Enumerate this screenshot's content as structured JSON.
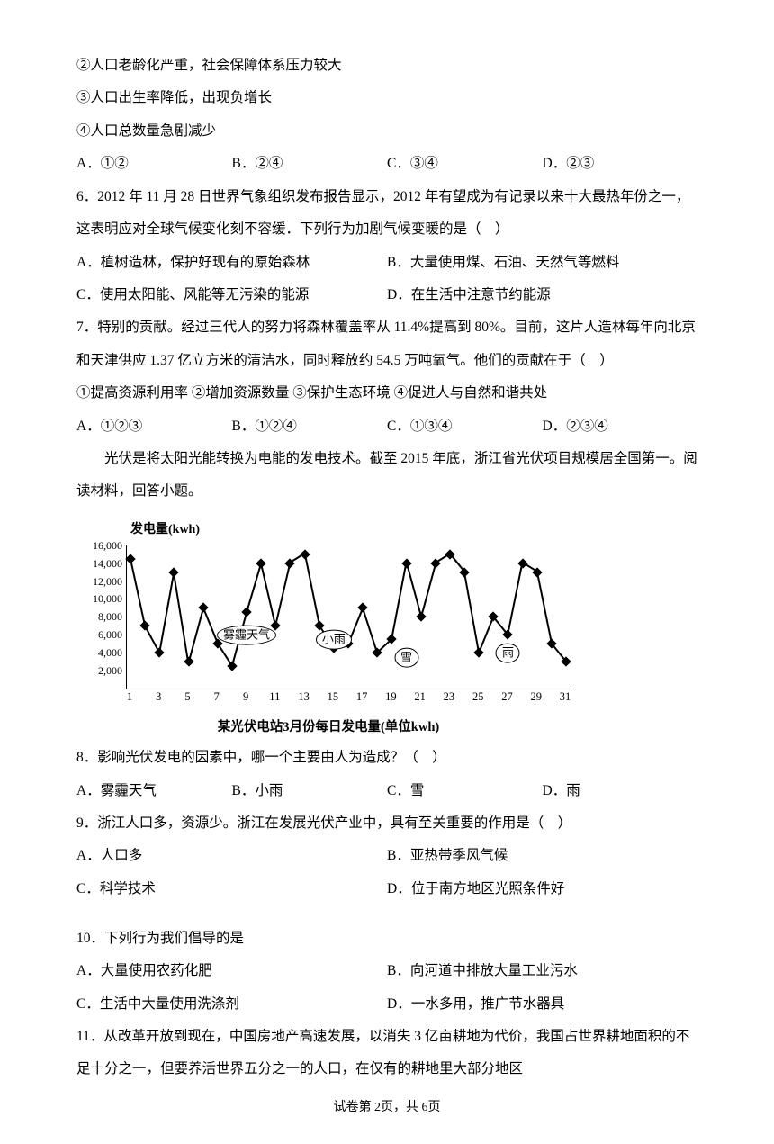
{
  "q_pre": {
    "s2": "②人口老龄化严重，社会保障体系压力较大",
    "s3": "③人口出生率降低，出现负增长",
    "s4": "④人口总数量急剧减少",
    "opts": {
      "a": "A．①②",
      "b": "B．②④",
      "c": "C．③④",
      "d": "D．②③"
    }
  },
  "q6": {
    "stem1": "6．2012 年 11 月 28 日世界气象组织发布报告显示，2012 年有望成为有记录以来十大最热年份之一，这表明应对全球气候变化刻不容缓．下列行为加剧气候变暖的是（　）",
    "a": "A．植树造林，保护好现有的原始森林",
    "b": "B．大量使用煤、石油、天然气等燃料",
    "c": "C．使用太阳能、风能等无污染的能源",
    "d": "D．在生活中注意节约能源"
  },
  "q7": {
    "stem": "7．特别的贡献。经过三代人的努力将森林覆盖率从 11.4%提高到 80%。目前，这片人造林每年向北京和天津供应 1.37 亿立方米的清洁水，同时释放约 54.5 万吨氧气。他们的贡献在于（　）",
    "sub": "①提高资源利用率 ②增加资源数量 ③保护生态环境 ④促进人与自然和谐共处",
    "opts": {
      "a": "A．①②③",
      "b": "B．①②④",
      "c": "C．①③④",
      "d": "D．②③④"
    }
  },
  "passage": {
    "p1": "光伏是将太阳光能转换为电能的发电技术。截至 2015 年底，浙江省光伏项目规模居全国第一。阅读材料，回答小题。"
  },
  "chart": {
    "type": "line",
    "y_label": "发电量(kwh)",
    "caption": "某光伏电站3月份每日发电量(单位kwh)",
    "ylim": [
      0,
      16000
    ],
    "ytick_step": 2000,
    "yticks": [
      "16,000",
      "14,000",
      "12,000",
      "10,000",
      "8,000",
      "6,000",
      "4,000",
      "2,000"
    ],
    "xticks": [
      1,
      3,
      5,
      7,
      9,
      11,
      13,
      15,
      17,
      19,
      21,
      23,
      25,
      27,
      29,
      31
    ],
    "xlim": [
      1,
      31
    ],
    "values": [
      14500,
      7000,
      4000,
      13000,
      3000,
      9000,
      5000,
      2500,
      8500,
      14000,
      7000,
      14000,
      15000,
      7000,
      4500,
      5000,
      9000,
      4000,
      5500,
      14000,
      8000,
      14000,
      15000,
      13000,
      4000,
      8000,
      6000,
      14000,
      13000,
      5000,
      3000
    ],
    "line_color": "#000000",
    "marker_size": 8,
    "background_color": "#ffffff",
    "bubbles": [
      {
        "x": 9,
        "y": 5500,
        "label": "雾霾天气"
      },
      {
        "x": 15,
        "y": 5000,
        "label": "小雨"
      },
      {
        "x": 20,
        "y": 3000,
        "label": "雪"
      },
      {
        "x": 27,
        "y": 3500,
        "label": "雨"
      }
    ]
  },
  "q8": {
    "stem": "8．影响光伏发电的因素中，哪一个主要由人为造成？（　）",
    "opts": {
      "a": "A．雾霾天气",
      "b": "B．小雨",
      "c": "C．雪",
      "d": "D．雨"
    }
  },
  "q9": {
    "stem": "9．浙江人口多，资源少。浙江在发展光伏产业中，具有至关重要的作用是（　）",
    "a": "A．人口多",
    "b": "B．亚热带季风气候",
    "c": "C．科学技术",
    "d": "D．位于南方地区光照条件好"
  },
  "q10": {
    "stem": "10．下列行为我们倡导的是",
    "a": "A．大量使用农药化肥",
    "b": "B．向河道中排放大量工业污水",
    "c": "C．生活中大量使用洗涤剂",
    "d": "D．一水多用，推广节水器具"
  },
  "q11": {
    "stem": "11．从改革开放到现在，中国房地产高速发展，以消失 3 亿亩耕地为代价，我国占世界耕地面积的不足十分之一，但要养活世界五分之一的人口，在仅有的耕地里大部分地区"
  },
  "footer": {
    "text": "试卷第 2页，共 6页"
  }
}
